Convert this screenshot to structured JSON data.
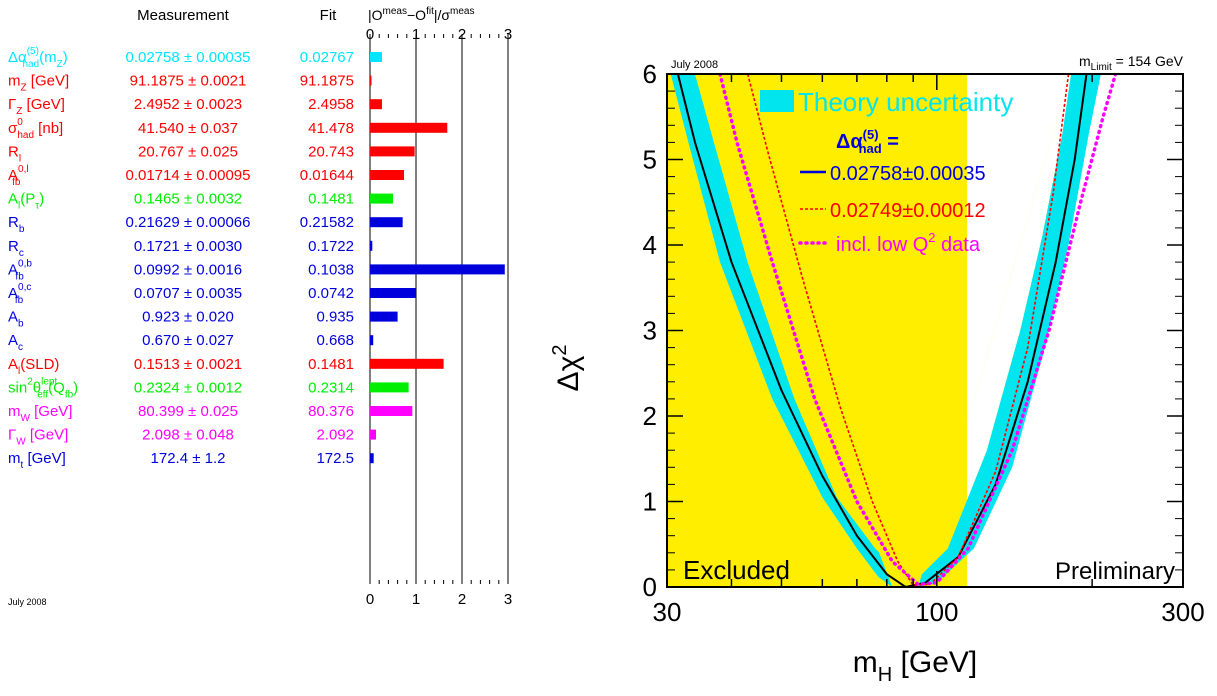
{
  "pulls": {
    "header_measurement": "Measurement",
    "header_fit": "Fit",
    "header_pull_pre": "|O",
    "header_pull_sup1": "meas",
    "header_pull_mid": "−O",
    "header_pull_sup2": "fit",
    "header_pull_post": "|/σ",
    "header_pull_sup3": "meas",
    "footer_note": "July 2008",
    "axis_ticks": [
      0,
      1,
      2,
      3
    ],
    "axis_range": [
      0,
      3
    ],
    "rows": [
      {
        "label": "Δα",
        "label_sup": "(5)",
        "label_sub": "had",
        "label_after": "(m",
        "label_sub2": "Z",
        "label_tail": ")",
        "measurement": "0.02758 ± 0.00035",
        "fit": "0.02767",
        "pull": 0.26,
        "color": "#00e5ff"
      },
      {
        "label": "m",
        "label_sub": "Z",
        "label_after": " [GeV]",
        "measurement": "91.1875 ± 0.0021",
        "fit": "91.1875",
        "pull": 0.02,
        "color": "#ff0000"
      },
      {
        "label": "Γ",
        "label_sub": "Z",
        "label_after": " [GeV]",
        "measurement": "2.4952 ± 0.0023",
        "fit": "2.4958",
        "pull": 0.26,
        "color": "#ff0000"
      },
      {
        "label": "σ",
        "label_sup": "0",
        "label_sub": "had",
        "label_after": " [nb]",
        "measurement": "41.540 ± 0.037",
        "fit": "41.478",
        "pull": 1.68,
        "color": "#ff0000"
      },
      {
        "label": "R",
        "label_sub": "l",
        "measurement": "20.767 ± 0.025",
        "fit": "20.743",
        "pull": 0.97,
        "color": "#ff0000"
      },
      {
        "label": "A",
        "label_sup": "0,l",
        "label_sub": "fb",
        "measurement": "0.01714 ± 0.00095",
        "fit": "0.01644",
        "pull": 0.74,
        "color": "#ff0000"
      },
      {
        "label": "A",
        "label_sub": "l",
        "label_after": "(P",
        "label_sub2": "τ",
        "label_tail": ")",
        "measurement": "0.1465 ± 0.0032",
        "fit": "0.1481",
        "pull": 0.5,
        "color": "#00ee00"
      },
      {
        "label": "R",
        "label_sub": "b",
        "measurement": "0.21629 ± 0.00066",
        "fit": "0.21582",
        "pull": 0.71,
        "color": "#0000dd"
      },
      {
        "label": "R",
        "label_sub": "c",
        "measurement": "0.1721 ± 0.0030",
        "fit": "0.1722",
        "pull": 0.05,
        "color": "#0000dd"
      },
      {
        "label": "A",
        "label_sup": "0,b",
        "label_sub": "fb",
        "measurement": "0.0992 ± 0.0016",
        "fit": "0.1038",
        "pull": 2.93,
        "color": "#0000dd"
      },
      {
        "label": "A",
        "label_sup": "0,c",
        "label_sub": "fb",
        "measurement": "0.0707 ± 0.0035",
        "fit": "0.0742",
        "pull": 1.0,
        "color": "#0000dd"
      },
      {
        "label": "A",
        "label_sub": "b",
        "measurement": "0.923 ± 0.020",
        "fit": "0.935",
        "pull": 0.6,
        "color": "#0000dd"
      },
      {
        "label": "A",
        "label_sub": "c",
        "measurement": "0.670 ± 0.027",
        "fit": "0.668",
        "pull": 0.07,
        "color": "#0000dd"
      },
      {
        "label": "A",
        "label_sub": "l",
        "label_after": "(SLD)",
        "measurement": "0.1513 ± 0.0021",
        "fit": "0.1481",
        "pull": 1.6,
        "color": "#ff0000"
      },
      {
        "label": "sin",
        "label_sup": "2",
        "label_after": "θ",
        "label_sup2": "lept",
        "label_sub2": "eff",
        "label_tail": "(Q",
        "label_sub3": "fb",
        "label_tail2": ")",
        "measurement": "0.2324 ± 0.0012",
        "fit": "0.2314",
        "pull": 0.84,
        "color": "#00ee00"
      },
      {
        "label": "m",
        "label_sub": "W",
        "label_after": " [GeV]",
        "measurement": "80.399 ± 0.025",
        "fit": "80.376",
        "pull": 0.92,
        "color": "#ff00ff"
      },
      {
        "label": "Γ",
        "label_sub": "W",
        "label_after": " [GeV]",
        "measurement": "2.098 ± 0.048",
        "fit": "2.092",
        "pull": 0.13,
        "color": "#ff00ff"
      },
      {
        "label": "m",
        "label_sub": "t",
        "label_after": " [GeV]",
        "measurement": "172.4 ± 1.2",
        "fit": "172.5",
        "pull": 0.08,
        "color": "#0000dd"
      }
    ]
  },
  "chart_data": {
    "type": "line",
    "top_left_note": "July 2008",
    "top_right_note_pre": "m",
    "top_right_note_sub": "Limit",
    "top_right_note_post": " = 154 GeV",
    "xlabel_main": "m",
    "xlabel_sub": "H",
    "xlabel_unit": " [GeV]",
    "ylabel_main": "Δχ",
    "ylabel_sup": "2",
    "x_scale": "log",
    "xlim": [
      30,
      300
    ],
    "ylim": [
      0,
      6
    ],
    "x_ticks": [
      30,
      100,
      300
    ],
    "y_ticks": [
      0,
      1,
      2,
      3,
      4,
      5,
      6
    ],
    "excluded_region": [
      30,
      114.4
    ],
    "excluded_label": "Excluded",
    "preliminary_label": "Preliminary",
    "legend": {
      "theory_band_label": "Theory uncertainty",
      "alpha_label_pre": "Δα",
      "alpha_label_sup": "(5)",
      "alpha_label_sub": "had",
      "alpha_label_post": " =",
      "series_labels": [
        "0.02758±0.00035",
        "0.02749±0.00012"
      ],
      "lowq_label_pre": "incl. low Q",
      "lowq_label_sup": "2",
      "lowq_label_post": " data"
    },
    "series": [
      {
        "key": "main",
        "color": "#000000",
        "style": "solid",
        "x": [
          31.5,
          34,
          40,
          50,
          60,
          70,
          80,
          87,
          95,
          110,
          130,
          150,
          170,
          185,
          195
        ],
        "y": [
          6.0,
          5.2,
          3.8,
          2.3,
          1.3,
          0.6,
          0.15,
          0.0,
          0.05,
          0.35,
          1.2,
          2.4,
          3.8,
          5.0,
          6.0
        ]
      },
      {
        "key": "band_inner",
        "color": "#00e5ee",
        "style": "band",
        "x": [
          30.5,
          33,
          38,
          48,
          60,
          70,
          77,
          82,
          90,
          105,
          125,
          145,
          160,
          175,
          182
        ],
        "y": [
          6.0,
          5.2,
          3.8,
          2.2,
          1.05,
          0.45,
          0.12,
          0.0,
          0.05,
          0.45,
          1.6,
          3.0,
          4.1,
          5.3,
          6.0
        ]
      },
      {
        "key": "band_outer",
        "color": "#00e5ee",
        "style": "band",
        "x": [
          34,
          37,
          43,
          53,
          64,
          76,
          86,
          92,
          100,
          118,
          140,
          162,
          180,
          197,
          208
        ],
        "y": [
          6.0,
          5.2,
          3.8,
          2.2,
          1.05,
          0.45,
          0.12,
          0.0,
          0.05,
          0.45,
          1.4,
          2.8,
          4.0,
          5.3,
          6.0
        ]
      },
      {
        "key": "alt_alpha",
        "color": "#ff0000",
        "style": "dashed",
        "x": [
          43,
          47,
          55,
          65,
          75,
          84,
          90,
          97,
          110,
          130,
          150,
          168,
          180
        ],
        "y": [
          6.0,
          5.1,
          3.6,
          2.1,
          1.0,
          0.3,
          0.02,
          0.03,
          0.35,
          1.35,
          2.8,
          4.6,
          6.0
        ]
      },
      {
        "key": "low_q2",
        "color": "#ff00ff",
        "style": "dotted",
        "x": [
          38,
          41,
          48,
          58,
          70,
          82,
          92,
          100,
          115,
          140,
          165,
          190,
          210,
          222
        ],
        "y": [
          6.0,
          5.2,
          3.8,
          2.2,
          1.0,
          0.3,
          0.03,
          0.05,
          0.45,
          1.6,
          3.0,
          4.5,
          5.5,
          6.0
        ]
      }
    ]
  }
}
